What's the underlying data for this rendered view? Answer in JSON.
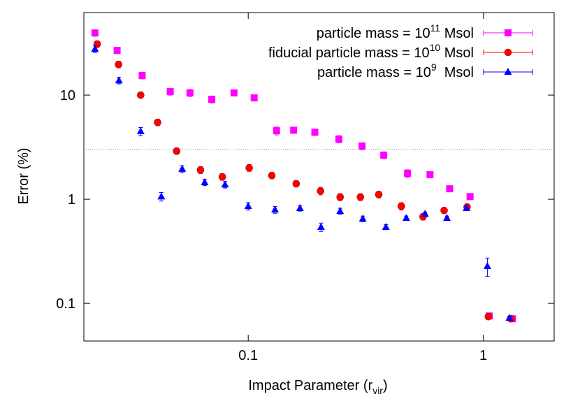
{
  "chart_data": {
    "type": "scatter",
    "x_label": {
      "text": "Impact Parameter (r",
      "sub": "vir",
      "end": ")"
    },
    "y_label": "Error (%)",
    "xlog": true,
    "ylog": true,
    "xlim": [
      0.02,
      2
    ],
    "ylim": [
      0.0435,
      62
    ],
    "xticks": [
      0.1,
      1
    ],
    "yticks": [
      0.1,
      1,
      10
    ],
    "hline": 3,
    "legend": "upper right",
    "series": [
      {
        "name": "particle mass = 10",
        "name_sup": "11",
        "name_unit": " Msol",
        "color": "#ff00ff",
        "marker": "square",
        "x": [
          0.0223,
          0.0277,
          0.0354,
          0.0466,
          0.0565,
          0.07,
          0.087,
          0.106,
          0.132,
          0.156,
          0.192,
          0.243,
          0.305,
          0.377,
          0.476,
          0.593,
          0.719,
          0.878,
          1.06,
          1.33
        ],
        "values": [
          39.5,
          26.9,
          15.4,
          10.8,
          10.5,
          9.1,
          10.5,
          9.4,
          4.55,
          4.6,
          4.4,
          3.78,
          3.24,
          2.65,
          1.77,
          1.72,
          1.26,
          1.06,
          0.0757,
          0.0711
        ],
        "errors": [
          2.8,
          1.9,
          1.1,
          0.8,
          0.8,
          0.7,
          0.7,
          0.6,
          0.4,
          0.3,
          0.3,
          0.3,
          0.25,
          0.2,
          0.15,
          0.08,
          0.08,
          0.06,
          0.004,
          0.003
        ]
      },
      {
        "name": "fiducial particle mass = 10",
        "name_sup": "10",
        "name_unit": " Msol",
        "color": "#ff0000",
        "marker": "circle",
        "x": [
          0.0228,
          0.0281,
          0.0349,
          0.0412,
          0.0496,
          0.0627,
          0.0776,
          0.101,
          0.126,
          0.16,
          0.203,
          0.246,
          0.3,
          0.359,
          0.448,
          0.554,
          0.681,
          0.853,
          1.05,
          1.31
        ],
        "values": [
          30.9,
          19.7,
          10,
          5.47,
          2.9,
          1.91,
          1.64,
          2.0,
          1.69,
          1.41,
          1.2,
          1.05,
          1.05,
          1.11,
          0.857,
          0.68,
          0.78,
          0.843,
          0.0745,
          0.0711
        ],
        "errors": [
          2.2,
          1.4,
          0.6,
          0.4,
          0.2,
          0.15,
          0.12,
          0.15,
          0.12,
          0.1,
          0.1,
          0.08,
          0.08,
          0.08,
          0.07,
          0.05,
          0.05,
          0.05,
          0.003,
          0.003
        ]
      },
      {
        "name": "particle mass = 10",
        "name_sup": "9",
        "name_unit": "  Msol",
        "color": "#0000ff",
        "marker": "triangle",
        "x": [
          0.0223,
          0.0282,
          0.0349,
          0.0427,
          0.0524,
          0.0653,
          0.0797,
          0.1,
          0.13,
          0.166,
          0.204,
          0.246,
          0.307,
          0.385,
          0.47,
          0.565,
          0.7,
          0.848,
          1.04,
          1.29
        ],
        "values": [
          27.7,
          13.8,
          4.48,
          1.06,
          1.95,
          1.45,
          1.38,
          0.857,
          0.793,
          0.819,
          0.54,
          0.769,
          0.649,
          0.54,
          0.659,
          0.723,
          0.659,
          0.819,
          0.227,
          0.0723
        ],
        "errors": [
          2,
          1,
          0.4,
          0.1,
          0.15,
          0.1,
          0.1,
          0.07,
          0.06,
          0.05,
          0.05,
          0.05,
          0.04,
          0.03,
          0.03,
          0.03,
          0.03,
          0.03,
          0.045,
          0.003
        ]
      }
    ]
  }
}
